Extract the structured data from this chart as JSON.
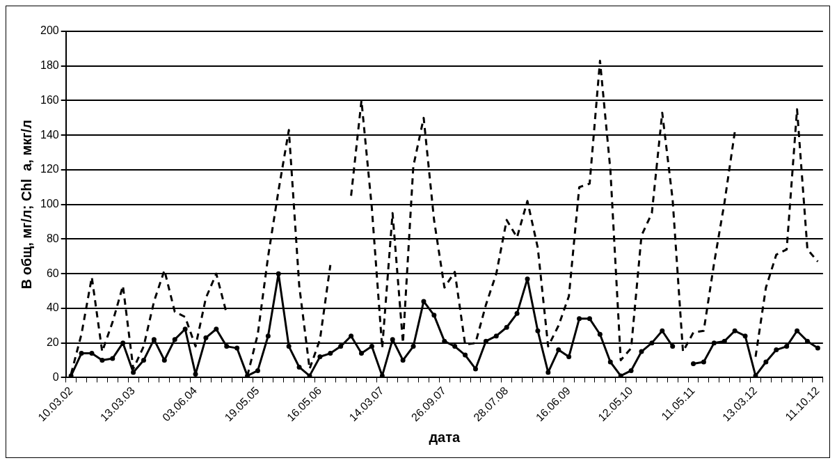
{
  "chart_data": {
    "type": "line",
    "xlabel": "дата",
    "ylabel": "В общ, мг/л; Chl  a, мкг/л",
    "categories": [
      "10.03.02",
      null,
      null,
      null,
      null,
      null,
      "13.03.03",
      null,
      null,
      null,
      null,
      null,
      "03.06.04",
      null,
      null,
      null,
      null,
      null,
      "19.05.05",
      null,
      null,
      null,
      null,
      null,
      "16.05.06",
      null,
      null,
      null,
      null,
      null,
      "14.03.07",
      null,
      null,
      null,
      null,
      null,
      "26.09.07",
      null,
      null,
      null,
      null,
      null,
      "28.07.08",
      null,
      null,
      null,
      null,
      null,
      "16.06.09",
      null,
      null,
      null,
      null,
      null,
      "12.05.10",
      null,
      null,
      null,
      null,
      null,
      "11.05.11",
      null,
      null,
      null,
      null,
      null,
      "13.03.12",
      null,
      null,
      null,
      null,
      null,
      "11.10.12"
    ],
    "series": [
      {
        "color": "#000000",
        "line_style": "dashed",
        "marker": "none",
        "values": [
          2,
          25,
          58,
          15,
          32,
          53,
          5,
          18,
          44,
          62,
          38,
          35,
          18,
          46,
          60,
          37,
          null,
          1,
          25,
          70,
          108,
          143,
          53,
          5,
          22,
          65,
          null,
          105,
          160,
          98,
          17,
          95,
          20,
          122,
          150,
          91,
          52,
          61,
          19,
          20,
          42,
          60,
          91,
          81,
          102,
          75,
          18,
          30,
          47,
          110,
          112,
          183,
          120,
          10,
          17,
          82,
          95,
          153,
          103,
          15,
          26,
          27,
          66,
          101,
          142,
          null,
          12,
          52,
          71,
          74,
          155,
          74,
          67
        ]
      },
      {
        "color": "#000000",
        "line_style": "solid",
        "marker": "circle",
        "values": [
          1,
          14,
          14,
          10,
          11,
          20,
          3,
          10,
          22,
          10,
          22,
          28,
          2,
          23,
          28,
          18,
          17,
          1,
          4,
          24,
          60,
          18,
          6,
          1,
          12,
          14,
          18,
          24,
          14,
          18,
          1,
          22,
          10,
          18,
          44,
          36,
          21,
          18,
          13,
          5,
          21,
          24,
          29,
          37,
          57,
          27,
          3,
          16,
          12,
          34,
          34,
          25,
          9,
          1,
          4,
          15,
          20,
          27,
          18,
          null,
          8,
          9,
          20,
          21,
          27,
          24,
          1,
          9,
          16,
          18,
          27,
          21,
          17
        ]
      }
    ],
    "ylim": [
      0,
      200
    ],
    "yticks": [
      0,
      20,
      40,
      60,
      80,
      100,
      120,
      140,
      160,
      180,
      200
    ],
    "grid": "y"
  }
}
